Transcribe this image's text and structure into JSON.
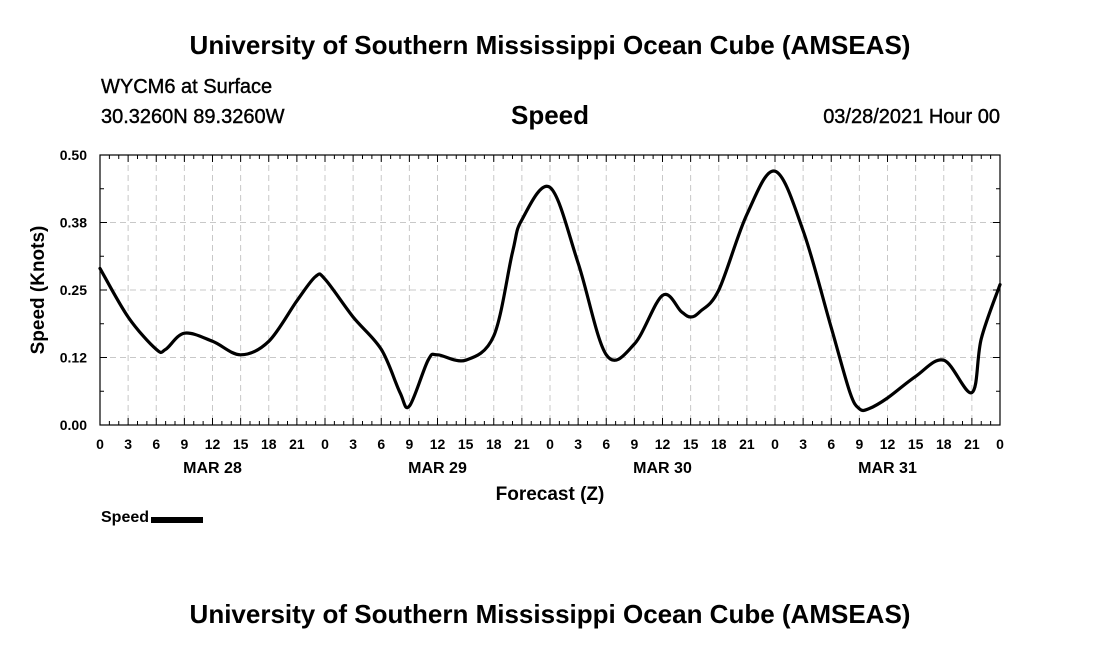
{
  "header": {
    "title": "University of Southern Mississippi Ocean Cube (AMSEAS)",
    "station": "WYCM6 at Surface",
    "coords": "30.3260N  89.3260W",
    "variable": "Speed",
    "datetime": "03/28/2021 Hour 00"
  },
  "footer": {
    "title": "University of Southern Mississippi Ocean Cube (AMSEAS)"
  },
  "chart_data": {
    "type": "line",
    "title": "Speed",
    "xlabel": "Forecast (Z)",
    "ylabel": "Speed (Knots)",
    "ylim": [
      0,
      0.5
    ],
    "xlim": [
      0,
      96
    ],
    "grid": true,
    "yticks": [
      0,
      0.125,
      0.25,
      0.375,
      0.5
    ],
    "ytick_labels": [
      "0.00",
      "0.12",
      "0.25",
      "0.38",
      "0.50"
    ],
    "xticks": [
      0,
      3,
      6,
      9,
      12,
      15,
      18,
      21,
      24,
      27,
      30,
      33,
      36,
      39,
      42,
      45,
      48,
      51,
      54,
      57,
      60,
      63,
      66,
      69,
      72,
      75,
      78,
      81,
      84,
      87,
      90,
      93,
      96
    ],
    "xtick_labels": [
      "0",
      "3",
      "6",
      "9",
      "12",
      "15",
      "18",
      "21",
      "0",
      "3",
      "6",
      "9",
      "12",
      "15",
      "18",
      "21",
      "0",
      "3",
      "6",
      "9",
      "12",
      "15",
      "18",
      "21",
      "0",
      "3",
      "6",
      "9",
      "12",
      "15",
      "18",
      "21",
      "0"
    ],
    "day_labels": [
      {
        "hour": 12,
        "label": "MAR 28"
      },
      {
        "hour": 36,
        "label": "MAR 29"
      },
      {
        "hour": 60,
        "label": "MAR 30"
      },
      {
        "hour": 84,
        "label": "MAR 31"
      }
    ],
    "legend": "bottom-left",
    "series": [
      {
        "name": "Speed",
        "color": "#000000",
        "x": [
          0,
          3,
          6,
          7,
          9,
          12,
          15,
          18,
          21,
          23,
          24,
          27,
          30,
          32,
          33,
          35,
          36,
          39,
          42,
          44,
          45,
          48,
          51,
          54,
          57,
          60,
          62,
          63,
          64,
          66,
          69,
          72,
          75,
          78,
          80,
          81,
          82,
          84,
          87,
          90,
          93,
          94,
          96
        ],
        "y": [
          0.29,
          0.2,
          0.14,
          0.14,
          0.17,
          0.155,
          0.13,
          0.155,
          0.23,
          0.275,
          0.27,
          0.2,
          0.14,
          0.06,
          0.035,
          0.12,
          0.13,
          0.12,
          0.165,
          0.32,
          0.38,
          0.44,
          0.3,
          0.13,
          0.15,
          0.24,
          0.21,
          0.2,
          0.21,
          0.25,
          0.39,
          0.47,
          0.36,
          0.18,
          0.06,
          0.03,
          0.03,
          0.05,
          0.09,
          0.12,
          0.06,
          0.16,
          0.26
        ]
      }
    ]
  }
}
